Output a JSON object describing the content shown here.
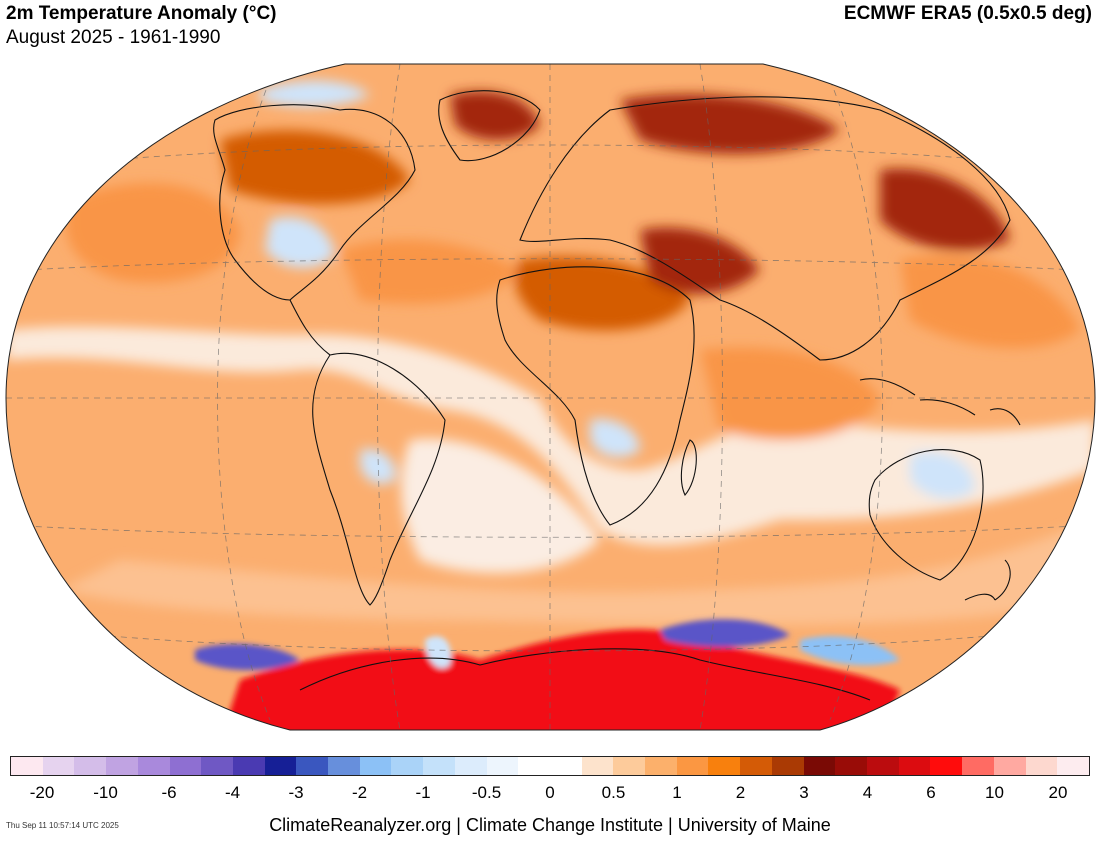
{
  "header": {
    "title": "2m Temperature Anomaly (°C)",
    "subtitle": "August 2025 - 1961-1990",
    "source": "ECMWF ERA5 (0.5x0.5 deg)"
  },
  "legend": {
    "tick_labels": [
      "-20",
      "-10",
      "-6",
      "-4",
      "-3",
      "-2",
      "-1",
      "-0.5",
      "0",
      "0.5",
      "1",
      "2",
      "3",
      "4",
      "6",
      "10",
      "20"
    ],
    "colors": [
      "#fde8f0",
      "#e6d3ef",
      "#d4bde9",
      "#c0a3e2",
      "#a989dc",
      "#8e6fd2",
      "#6f58c4",
      "#4a3ab2",
      "#161f96",
      "#3a57bf",
      "#678fdc",
      "#8cc1f6",
      "#aad3f8",
      "#c4e1fa",
      "#dcecfc",
      "#edf5fd",
      "#ffffff",
      "#ffffff",
      "#fde3cc",
      "#fdcb9b",
      "#fcb06b",
      "#fb9742",
      "#f8800d",
      "#d45b06",
      "#aa3a04",
      "#7a0a05",
      "#990c07",
      "#bb0c0e",
      "#dc0c10",
      "#ff0c0c",
      "#ff6b63",
      "#ffa9a1",
      "#fdd8cf",
      "#fdecef"
    ]
  },
  "map": {
    "projection": "Winkel tripel",
    "background_color": "#fbae6f",
    "colors": {
      "warm_light": "#fcc699",
      "warm_mid": "#f99546",
      "warm_deep": "#d45b06",
      "hot": "#a3260a",
      "very_hot": "#e41316",
      "antarctic_red": "#f20f12",
      "neutral": "#fbf4ef",
      "cool_light": "#cfe4fa",
      "cool_mid": "#8cc1f6",
      "cold": "#5a55c8"
    }
  },
  "footer": {
    "timestamp": "Thu Sep 11 10:57:14 UTC 2025",
    "credits": "ClimateReanalyzer.org | Climate Change Institute | University of Maine"
  }
}
